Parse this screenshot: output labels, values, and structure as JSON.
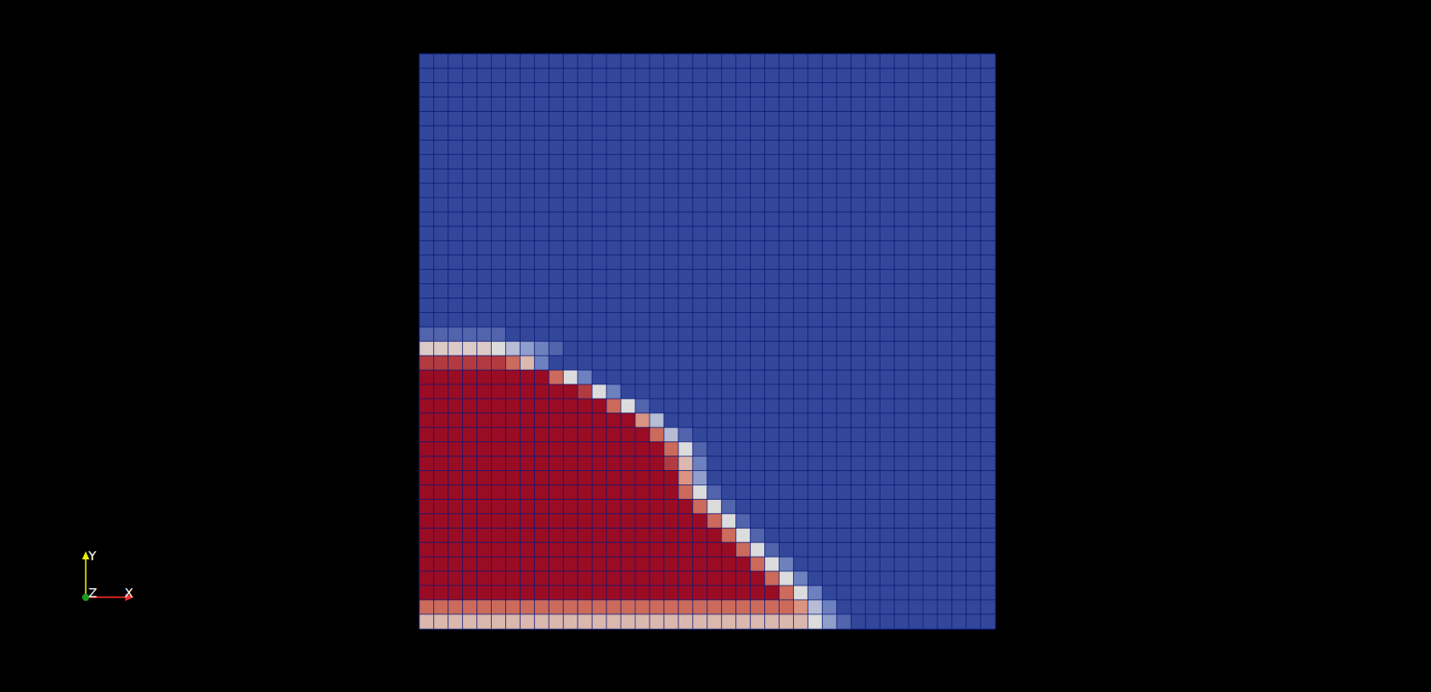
{
  "chart_data": {
    "type": "heatmap",
    "annotations": [
      "Y",
      "Z",
      "X"
    ],
    "tick_labels": false,
    "zlim": [
      0,
      1
    ],
    "cells": [
      [
        0,
        0,
        0,
        0,
        0,
        0,
        0,
        0,
        0,
        0,
        0,
        0,
        0,
        0,
        0,
        0,
        0,
        0,
        0,
        0,
        0,
        0,
        0,
        0,
        0,
        0,
        0,
        0,
        0,
        0,
        0,
        0,
        0,
        0,
        0,
        0,
        0,
        0,
        0,
        0
      ],
      [
        0,
        0,
        0,
        0,
        0,
        0,
        0,
        0,
        0,
        0,
        0,
        0,
        0,
        0,
        0,
        0,
        0,
        0,
        0,
        0,
        0,
        0,
        0,
        0,
        0,
        0,
        0,
        0,
        0,
        0,
        0,
        0,
        0,
        0,
        0,
        0,
        0,
        0,
        0,
        0
      ],
      [
        0,
        0,
        0,
        0,
        0,
        0,
        0,
        0,
        0,
        0,
        0,
        0,
        0,
        0,
        0,
        0,
        0,
        0,
        0,
        0,
        0,
        0,
        0,
        0,
        0,
        0,
        0,
        0,
        0,
        0,
        0,
        0,
        0,
        0,
        0,
        0,
        0,
        0,
        0,
        0
      ],
      [
        0,
        0,
        0,
        0,
        0,
        0,
        0,
        0,
        0,
        0,
        0,
        0,
        0,
        0,
        0,
        0,
        0,
        0,
        0,
        0,
        0,
        0,
        0,
        0,
        0,
        0,
        0,
        0,
        0,
        0,
        0,
        0,
        0,
        0,
        0,
        0,
        0,
        0,
        0,
        0
      ],
      [
        0,
        0,
        0,
        0,
        0,
        0,
        0,
        0,
        0,
        0,
        0,
        0,
        0,
        0,
        0,
        0,
        0,
        0,
        0,
        0,
        0,
        0,
        0,
        0,
        0,
        0,
        0,
        0,
        0,
        0,
        0,
        0,
        0,
        0,
        0,
        0,
        0,
        0,
        0,
        0
      ],
      [
        0,
        0,
        0,
        0,
        0,
        0,
        0,
        0,
        0,
        0,
        0,
        0,
        0,
        0,
        0,
        0,
        0,
        0,
        0,
        0,
        0,
        0,
        0,
        0,
        0,
        0,
        0,
        0,
        0,
        0,
        0,
        0,
        0,
        0,
        0,
        0,
        0,
        0,
        0,
        0
      ],
      [
        0,
        0,
        0,
        0,
        0,
        0,
        0,
        0,
        0,
        0,
        0,
        0,
        0,
        0,
        0,
        0,
        0,
        0,
        0,
        0,
        0,
        0,
        0,
        0,
        0,
        0,
        0,
        0,
        0,
        0,
        0,
        0,
        0,
        0,
        0,
        0,
        0,
        0,
        0,
        0
      ],
      [
        0,
        0,
        0,
        0,
        0,
        0,
        0,
        0,
        0,
        0,
        0,
        0,
        0,
        0,
        0,
        0,
        0,
        0,
        0,
        0,
        0,
        0,
        0,
        0,
        0,
        0,
        0,
        0,
        0,
        0,
        0,
        0,
        0,
        0,
        0,
        0,
        0,
        0,
        0,
        0
      ],
      [
        0,
        0,
        0,
        0,
        0,
        0,
        0,
        0,
        0,
        0,
        0,
        0,
        0,
        0,
        0,
        0,
        0,
        0,
        0,
        0,
        0,
        0,
        0,
        0,
        0,
        0,
        0,
        0,
        0,
        0,
        0,
        0,
        0,
        0,
        0,
        0,
        0,
        0,
        0,
        0
      ],
      [
        0,
        0,
        0,
        0,
        0,
        0,
        0,
        0,
        0,
        0,
        0,
        0,
        0,
        0,
        0,
        0,
        0,
        0,
        0,
        0,
        0,
        0,
        0,
        0,
        0,
        0,
        0,
        0,
        0,
        0,
        0,
        0,
        0,
        0,
        0,
        0,
        0,
        0,
        0,
        0
      ],
      [
        0,
        0,
        0,
        0,
        0,
        0,
        0,
        0,
        0,
        0,
        0,
        0,
        0,
        0,
        0,
        0,
        0,
        0,
        0,
        0,
        0,
        0,
        0,
        0,
        0,
        0,
        0,
        0,
        0,
        0,
        0,
        0,
        0,
        0,
        0,
        0,
        0,
        0,
        0,
        0
      ],
      [
        0,
        0,
        0,
        0,
        0,
        0,
        0,
        0,
        0,
        0,
        0,
        0,
        0,
        0,
        0,
        0,
        0,
        0,
        0,
        0,
        0,
        0,
        0,
        0,
        0,
        0,
        0,
        0,
        0,
        0,
        0,
        0,
        0,
        0,
        0,
        0,
        0,
        0,
        0,
        0
      ],
      [
        0,
        0,
        0,
        0,
        0,
        0,
        0,
        0,
        0,
        0,
        0,
        0,
        0,
        0,
        0,
        0,
        0,
        0,
        0,
        0,
        0,
        0,
        0,
        0,
        0,
        0,
        0,
        0,
        0,
        0,
        0,
        0,
        0,
        0,
        0,
        0,
        0,
        0,
        0,
        0
      ],
      [
        0,
        0,
        0,
        0,
        0,
        0,
        0,
        0,
        0,
        0,
        0,
        0,
        0,
        0,
        0,
        0,
        0,
        0,
        0,
        0,
        0,
        0,
        0,
        0,
        0,
        0,
        0,
        0,
        0,
        0,
        0,
        0,
        0,
        0,
        0,
        0,
        0,
        0,
        0,
        0
      ],
      [
        0,
        0,
        0,
        0,
        0,
        0,
        0,
        0,
        0,
        0,
        0,
        0,
        0,
        0,
        0,
        0,
        0,
        0,
        0,
        0,
        0,
        0,
        0,
        0,
        0,
        0,
        0,
        0,
        0,
        0,
        0,
        0,
        0,
        0,
        0,
        0,
        0,
        0,
        0,
        0
      ],
      [
        0,
        0,
        0,
        0,
        0,
        0,
        0,
        0,
        0,
        0,
        0,
        0,
        0,
        0,
        0,
        0,
        0,
        0,
        0,
        0,
        0,
        0,
        0,
        0,
        0,
        0,
        0,
        0,
        0,
        0,
        0,
        0,
        0,
        0,
        0,
        0,
        0,
        0,
        0,
        0
      ],
      [
        0,
        0,
        0,
        0,
        0,
        0,
        0,
        0,
        0,
        0,
        0,
        0,
        0,
        0,
        0,
        0,
        0,
        0,
        0,
        0,
        0,
        0,
        0,
        0,
        0,
        0,
        0,
        0,
        0,
        0,
        0,
        0,
        0,
        0,
        0,
        0,
        0,
        0,
        0,
        0
      ],
      [
        0,
        0,
        0,
        0,
        0,
        0,
        0,
        0,
        0,
        0,
        0,
        0,
        0,
        0,
        0,
        0,
        0,
        0,
        0,
        0,
        0,
        0,
        0,
        0,
        0,
        0,
        0,
        0,
        0,
        0,
        0,
        0,
        0,
        0,
        0,
        0,
        0,
        0,
        0,
        0
      ],
      [
        0,
        0,
        0,
        0,
        0,
        0,
        0,
        0,
        0,
        0,
        0,
        0,
        0,
        0,
        0,
        0,
        0,
        0,
        0,
        0,
        0,
        0,
        0,
        0,
        0,
        0,
        0,
        0,
        0,
        0,
        0,
        0,
        0,
        0,
        0,
        0,
        0,
        0,
        0,
        0
      ],
      [
        0.1,
        0.1,
        0.1,
        0.1,
        0.1,
        0.1,
        0,
        0,
        0,
        0,
        0,
        0,
        0,
        0,
        0,
        0,
        0,
        0,
        0,
        0,
        0,
        0,
        0,
        0,
        0,
        0,
        0,
        0,
        0,
        0,
        0,
        0,
        0,
        0,
        0,
        0,
        0,
        0,
        0,
        0
      ],
      [
        0.55,
        0.55,
        0.55,
        0.55,
        0.55,
        0.5,
        0.4,
        0.3,
        0.2,
        0.1,
        0,
        0,
        0,
        0,
        0,
        0,
        0,
        0,
        0,
        0,
        0,
        0,
        0,
        0,
        0,
        0,
        0,
        0,
        0,
        0,
        0,
        0,
        0,
        0,
        0,
        0,
        0,
        0,
        0,
        0
      ],
      [
        0.9,
        0.9,
        0.9,
        0.9,
        0.9,
        0.9,
        0.8,
        0.6,
        0.2,
        0,
        0,
        0,
        0,
        0,
        0,
        0,
        0,
        0,
        0,
        0,
        0,
        0,
        0,
        0,
        0,
        0,
        0,
        0,
        0,
        0,
        0,
        0,
        0,
        0,
        0,
        0,
        0,
        0,
        0,
        0
      ],
      [
        1,
        1,
        1,
        1,
        1,
        1,
        1,
        1,
        1,
        0.8,
        0.5,
        0.2,
        0,
        0,
        0,
        0,
        0,
        0,
        0,
        0,
        0,
        0,
        0,
        0,
        0,
        0,
        0,
        0,
        0,
        0,
        0,
        0,
        0,
        0,
        0,
        0,
        0,
        0,
        0,
        0
      ],
      [
        1,
        1,
        1,
        1,
        1,
        1,
        1,
        1,
        1,
        1,
        1,
        0.9,
        0.5,
        0.2,
        0,
        0,
        0,
        0,
        0,
        0,
        0,
        0,
        0,
        0,
        0,
        0,
        0,
        0,
        0,
        0,
        0,
        0,
        0,
        0,
        0,
        0,
        0,
        0,
        0,
        0
      ],
      [
        1,
        1,
        1,
        1,
        1,
        1,
        1,
        1,
        1,
        1,
        1,
        1,
        1,
        0.8,
        0.5,
        0.1,
        0,
        0,
        0,
        0,
        0,
        0,
        0,
        0,
        0,
        0,
        0,
        0,
        0,
        0,
        0,
        0,
        0,
        0,
        0,
        0,
        0,
        0,
        0,
        0
      ],
      [
        1,
        1,
        1,
        1,
        1,
        1,
        1,
        1,
        1,
        1,
        1,
        1,
        1,
        1,
        1,
        0.7,
        0.4,
        0,
        0,
        0,
        0,
        0,
        0,
        0,
        0,
        0,
        0,
        0,
        0,
        0,
        0,
        0,
        0,
        0,
        0,
        0,
        0,
        0,
        0,
        0
      ],
      [
        1,
        1,
        1,
        1,
        1,
        1,
        1,
        1,
        1,
        1,
        1,
        1,
        1,
        1,
        1,
        1,
        0.8,
        0.4,
        0.1,
        0,
        0,
        0,
        0,
        0,
        0,
        0,
        0,
        0,
        0,
        0,
        0,
        0,
        0,
        0,
        0,
        0,
        0,
        0,
        0,
        0
      ],
      [
        1,
        1,
        1,
        1,
        1,
        1,
        1,
        1,
        1,
        1,
        1,
        1,
        1,
        1,
        1,
        1,
        1,
        0.8,
        0.5,
        0.1,
        0,
        0,
        0,
        0,
        0,
        0,
        0,
        0,
        0,
        0,
        0,
        0,
        0,
        0,
        0,
        0,
        0,
        0,
        0,
        0
      ],
      [
        1,
        1,
        1,
        1,
        1,
        1,
        1,
        1,
        1,
        1,
        1,
        1,
        1,
        1,
        1,
        1,
        1,
        0.9,
        0.6,
        0.2,
        0,
        0,
        0,
        0,
        0,
        0,
        0,
        0,
        0,
        0,
        0,
        0,
        0,
        0,
        0,
        0,
        0,
        0,
        0,
        0
      ],
      [
        1,
        1,
        1,
        1,
        1,
        1,
        1,
        1,
        1,
        1,
        1,
        1,
        1,
        1,
        1,
        1,
        1,
        1,
        0.7,
        0.3,
        0,
        0,
        0,
        0,
        0,
        0,
        0,
        0,
        0,
        0,
        0,
        0,
        0,
        0,
        0,
        0,
        0,
        0,
        0,
        0
      ],
      [
        1,
        1,
        1,
        1,
        1,
        1,
        1,
        1,
        1,
        1,
        1,
        1,
        1,
        1,
        1,
        1,
        1,
        1,
        0.8,
        0.5,
        0.1,
        0,
        0,
        0,
        0,
        0,
        0,
        0,
        0,
        0,
        0,
        0,
        0,
        0,
        0,
        0,
        0,
        0,
        0,
        0
      ],
      [
        1,
        1,
        1,
        1,
        1,
        1,
        1,
        1,
        1,
        1,
        1,
        1,
        1,
        1,
        1,
        1,
        1,
        1,
        1,
        0.8,
        0.5,
        0.1,
        0,
        0,
        0,
        0,
        0,
        0,
        0,
        0,
        0,
        0,
        0,
        0,
        0,
        0,
        0,
        0,
        0,
        0
      ],
      [
        1,
        1,
        1,
        1,
        1,
        1,
        1,
        1,
        1,
        1,
        1,
        1,
        1,
        1,
        1,
        1,
        1,
        1,
        1,
        1,
        0.8,
        0.5,
        0.1,
        0,
        0,
        0,
        0,
        0,
        0,
        0,
        0,
        0,
        0,
        0,
        0,
        0,
        0,
        0,
        0,
        0
      ],
      [
        1,
        1,
        1,
        1,
        1,
        1,
        1,
        1,
        1,
        1,
        1,
        1,
        1,
        1,
        1,
        1,
        1,
        1,
        1,
        1,
        1,
        0.8,
        0.5,
        0.1,
        0,
        0,
        0,
        0,
        0,
        0,
        0,
        0,
        0,
        0,
        0,
        0,
        0,
        0,
        0,
        0
      ],
      [
        1,
        1,
        1,
        1,
        1,
        1,
        1,
        1,
        1,
        1,
        1,
        1,
        1,
        1,
        1,
        1,
        1,
        1,
        1,
        1,
        1,
        1,
        0.8,
        0.5,
        0.1,
        0,
        0,
        0,
        0,
        0,
        0,
        0,
        0,
        0,
        0,
        0,
        0,
        0,
        0,
        0
      ],
      [
        1,
        1,
        1,
        1,
        1,
        1,
        1,
        1,
        1,
        1,
        1,
        1,
        1,
        1,
        1,
        1,
        1,
        1,
        1,
        1,
        1,
        1,
        1,
        0.8,
        0.5,
        0.2,
        0,
        0,
        0,
        0,
        0,
        0,
        0,
        0,
        0,
        0,
        0,
        0,
        0,
        0
      ],
      [
        1,
        1,
        1,
        1,
        1,
        1,
        1,
        1,
        1,
        1,
        1,
        1,
        1,
        1,
        1,
        1,
        1,
        1,
        1,
        1,
        1,
        1,
        1,
        1,
        0.8,
        0.5,
        0.2,
        0,
        0,
        0,
        0,
        0,
        0,
        0,
        0,
        0,
        0,
        0,
        0,
        0
      ],
      [
        1,
        1,
        1,
        1,
        1,
        1,
        1,
        1,
        1,
        1,
        1,
        1,
        1,
        1,
        1,
        1,
        1,
        1,
        1,
        1,
        1,
        1,
        1,
        1,
        1,
        0.8,
        0.5,
        0.2,
        0,
        0,
        0,
        0,
        0,
        0,
        0,
        0,
        0,
        0,
        0,
        0
      ],
      [
        0.8,
        0.8,
        0.8,
        0.8,
        0.8,
        0.8,
        0.8,
        0.8,
        0.8,
        0.8,
        0.8,
        0.8,
        0.8,
        0.8,
        0.8,
        0.8,
        0.8,
        0.8,
        0.8,
        0.8,
        0.8,
        0.8,
        0.8,
        0.8,
        0.8,
        0.8,
        0.7,
        0.4,
        0.2,
        0,
        0,
        0,
        0,
        0,
        0,
        0,
        0,
        0,
        0,
        0
      ],
      [
        0.6,
        0.6,
        0.6,
        0.6,
        0.6,
        0.6,
        0.6,
        0.6,
        0.6,
        0.6,
        0.6,
        0.6,
        0.6,
        0.6,
        0.6,
        0.6,
        0.6,
        0.6,
        0.6,
        0.6,
        0.6,
        0.6,
        0.6,
        0.6,
        0.6,
        0.6,
        0.6,
        0.5,
        0.3,
        0.1,
        0,
        0,
        0,
        0,
        0,
        0,
        0,
        0,
        0,
        0
      ]
    ]
  }
}
